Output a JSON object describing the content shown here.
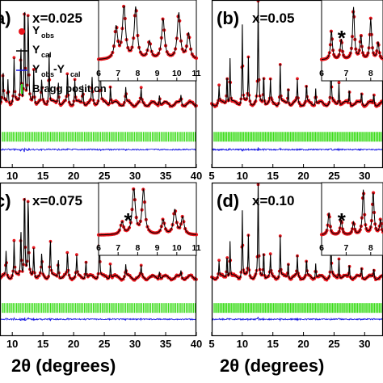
{
  "figure": {
    "xlabel_left": "2θ (degrees)",
    "xlabel_right": "2θ (degrees)"
  },
  "chart_data": [
    {
      "type": "line",
      "panel_label": "a)",
      "composition": "x=0.025",
      "xlim": [
        8,
        40
      ],
      "xticks": [
        10,
        15,
        20,
        25,
        30,
        35,
        40
      ],
      "legend": {
        "placement": "top-left",
        "entries": [
          "Y",
          "obs",
          "Y",
          "cal",
          "Y",
          "obs",
          "-Y",
          "cal",
          "Bragg position"
        ]
      },
      "peaks": [
        [
          8.5,
          0.3
        ],
        [
          9.3,
          0.22
        ],
        [
          10.3,
          0.4
        ],
        [
          11.4,
          0.55
        ],
        [
          12.0,
          1.0
        ],
        [
          12.6,
          0.85
        ],
        [
          13.5,
          0.32
        ],
        [
          14.8,
          0.2
        ],
        [
          16.0,
          0.45
        ],
        [
          17.5,
          0.22
        ],
        [
          19.0,
          0.28
        ],
        [
          20.2,
          0.22
        ],
        [
          21.5,
          0.18
        ],
        [
          23.0,
          0.22
        ],
        [
          24.3,
          0.65
        ],
        [
          26.0,
          0.18
        ],
        [
          28.5,
          0.14
        ],
        [
          31.0,
          0.12
        ],
        [
          34.0,
          0.1
        ],
        [
          37.5,
          0.08
        ]
      ],
      "inset": {
        "xlim": [
          6,
          11
        ],
        "xticks": [
          6,
          7,
          8,
          9,
          10,
          11
        ],
        "peaks": [
          [
            6.9,
            0.55
          ],
          [
            7.3,
            0.95
          ],
          [
            7.9,
            0.9
          ],
          [
            8.6,
            0.3
          ],
          [
            9.3,
            0.7
          ],
          [
            10.1,
            0.8
          ],
          [
            10.6,
            0.45
          ]
        ],
        "star": false
      }
    },
    {
      "type": "line",
      "panel_label": "(b)",
      "composition": "x=0.05",
      "xlim": [
        5,
        33
      ],
      "xticks": [
        5,
        10,
        15,
        20,
        25,
        30
      ],
      "peaks": [
        [
          6.2,
          0.15
        ],
        [
          7.5,
          0.3
        ],
        [
          8.0,
          0.4
        ],
        [
          10.0,
          0.7
        ],
        [
          11.0,
          0.4
        ],
        [
          12.6,
          1.0
        ],
        [
          13.5,
          0.3
        ],
        [
          14.6,
          0.2
        ],
        [
          16.2,
          0.35
        ],
        [
          17.5,
          0.18
        ],
        [
          19.0,
          0.2
        ],
        [
          20.5,
          0.18
        ],
        [
          22.0,
          0.15
        ],
        [
          24.5,
          0.45
        ],
        [
          25.8,
          0.2
        ],
        [
          27.5,
          0.15
        ],
        [
          29.5,
          0.12
        ],
        [
          31.5,
          0.1
        ]
      ],
      "inset": {
        "xlim": [
          6,
          8.5
        ],
        "xticks": [
          6,
          7,
          8
        ],
        "peaks": [
          [
            6.4,
            0.5
          ],
          [
            6.8,
            0.35
          ],
          [
            7.3,
            0.9
          ],
          [
            7.6,
            0.4
          ],
          [
            8.0,
            0.7
          ],
          [
            8.3,
            0.3
          ]
        ],
        "star": true
      }
    },
    {
      "type": "line",
      "panel_label": "c)",
      "composition": "x=0.075",
      "xlim": [
        8,
        40
      ],
      "xticks": [
        10,
        15,
        20,
        25,
        30,
        35,
        40
      ],
      "peaks": [
        [
          9.0,
          0.25
        ],
        [
          10.3,
          0.35
        ],
        [
          11.4,
          0.5
        ],
        [
          12.0,
          0.95
        ],
        [
          12.6,
          0.8
        ],
        [
          13.5,
          0.3
        ],
        [
          14.8,
          0.22
        ],
        [
          16.2,
          0.4
        ],
        [
          17.5,
          0.2
        ],
        [
          19.0,
          0.25
        ],
        [
          20.5,
          0.2
        ],
        [
          22.0,
          0.18
        ],
        [
          24.2,
          0.45
        ],
        [
          26.0,
          0.15
        ],
        [
          28.5,
          0.12
        ],
        [
          31.0,
          0.1
        ],
        [
          34.0,
          0.08
        ],
        [
          37.5,
          0.07
        ]
      ],
      "inset": {
        "xlim": [
          6,
          11
        ],
        "xticks": [
          6,
          7,
          8,
          9,
          10,
          11
        ],
        "peaks": [
          [
            7.2,
            0.25
          ],
          [
            7.8,
            0.95
          ],
          [
            8.3,
            0.9
          ],
          [
            9.3,
            0.3
          ],
          [
            9.9,
            0.5
          ],
          [
            10.3,
            0.35
          ]
        ],
        "star": true
      }
    },
    {
      "type": "line",
      "panel_label": "(d)",
      "composition": "x=0.10",
      "xlim": [
        5,
        33
      ],
      "xticks": [
        5,
        10,
        15,
        20,
        25,
        30
      ],
      "peaks": [
        [
          6.2,
          0.15
        ],
        [
          7.5,
          0.25
        ],
        [
          8.0,
          0.35
        ],
        [
          10.0,
          0.65
        ],
        [
          11.0,
          0.4
        ],
        [
          12.6,
          1.0
        ],
        [
          13.5,
          0.3
        ],
        [
          14.6,
          0.2
        ],
        [
          16.2,
          0.4
        ],
        [
          17.5,
          0.18
        ],
        [
          19.0,
          0.2
        ],
        [
          20.5,
          0.18
        ],
        [
          22.0,
          0.15
        ],
        [
          24.5,
          0.4
        ],
        [
          25.8,
          0.2
        ],
        [
          27.5,
          0.15
        ],
        [
          29.5,
          0.12
        ],
        [
          31.5,
          0.1
        ]
      ],
      "inset": {
        "xlim": [
          6,
          8.5
        ],
        "xticks": [
          6,
          7,
          8
        ],
        "peaks": [
          [
            6.3,
            0.45
          ],
          [
            6.8,
            0.3
          ],
          [
            7.3,
            0.25
          ],
          [
            7.7,
            0.9
          ],
          [
            8.1,
            0.85
          ],
          [
            8.4,
            0.3
          ]
        ],
        "star": true
      }
    }
  ],
  "colors": {
    "observed": "#e8141b",
    "calculated": "#000000",
    "difference": "#1a1ae6",
    "bragg": "#3ddc1c",
    "star": "#1a1ae6"
  }
}
